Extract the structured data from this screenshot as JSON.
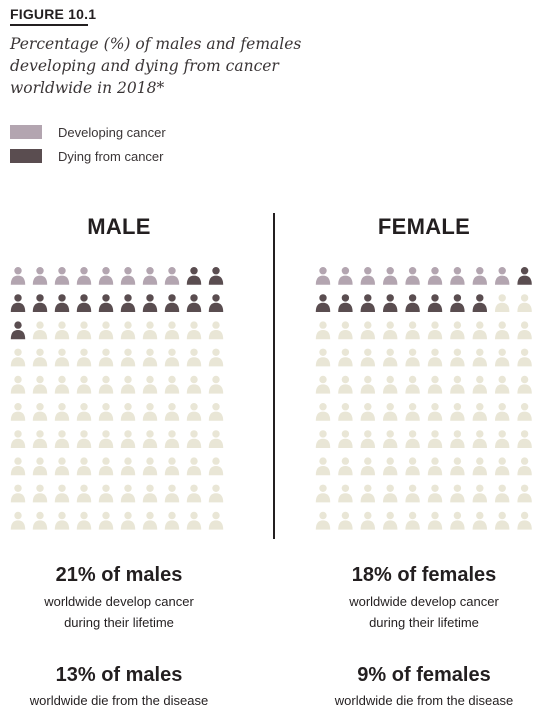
{
  "figure_label": "FIGURE 10.1",
  "title": "Percentage (%) of males and females developing and dying from cancer worldwide in 2018*",
  "legend": [
    {
      "label": "Developing cancer",
      "color": "#b3a5b0"
    },
    {
      "label": "Dying from cancer",
      "color": "#5a4d50"
    }
  ],
  "colors": {
    "developing": "#b3a5b0",
    "dying": "#5a4d50",
    "unaffected": "#e9e6d6"
  },
  "chart_data": {
    "type": "pictogram",
    "icons_per_panel": 100,
    "grid": {
      "columns": 10,
      "rows": 10
    },
    "series": [
      {
        "name": "Developing cancer"
      },
      {
        "name": "Dying from cancer"
      }
    ],
    "panels": [
      {
        "title": "MALE",
        "developing_pct": 21,
        "dying_pct": 13,
        "stat1_headline": "21% of males",
        "stat1_line1": "worldwide develop cancer",
        "stat1_line2": "during their lifetime",
        "stat2_headline": "13% of males",
        "stat2_line1": "worldwide die from the disease"
      },
      {
        "title": "FEMALE",
        "developing_pct": 18,
        "dying_pct": 9,
        "stat1_headline": "18% of females",
        "stat1_line1": "worldwide develop cancer",
        "stat1_line2": "during their lifetime",
        "stat2_headline": "9% of females",
        "stat2_line1": "worldwide die from the disease"
      }
    ]
  }
}
